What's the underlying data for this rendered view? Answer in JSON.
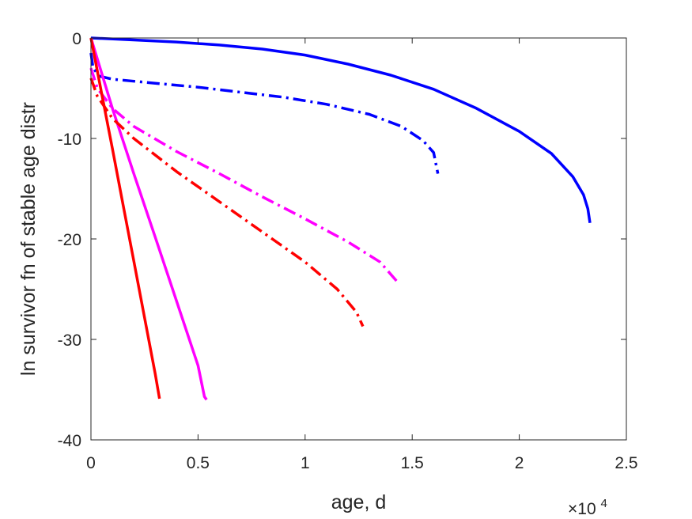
{
  "chart_data": {
    "type": "line",
    "title": "",
    "xlabel": "age, d",
    "ylabel": "ln survivor fn of stable age distr",
    "x_exponent_label": {
      "base": "×10",
      "exponent": "4"
    },
    "xlim": [
      0,
      25000
    ],
    "ylim": [
      -40,
      0
    ],
    "xticks": [
      0,
      5000,
      10000,
      15000,
      20000,
      25000
    ],
    "xtick_labels": [
      "0",
      "0.5",
      "1",
      "1.5",
      "2",
      "2.5"
    ],
    "yticks": [
      0,
      -10,
      -20,
      -30,
      -40
    ],
    "ytick_labels": [
      "0",
      "-10",
      "-20",
      "-30",
      "-40"
    ],
    "grid": false,
    "legend": "none",
    "series": [
      {
        "color": "#0000ff",
        "style": "solid",
        "points": [
          [
            0,
            0
          ],
          [
            2000,
            -0.2
          ],
          [
            4000,
            -0.4
          ],
          [
            6000,
            -0.7
          ],
          [
            8000,
            -1.1
          ],
          [
            10000,
            -1.7
          ],
          [
            12000,
            -2.6
          ],
          [
            14000,
            -3.7
          ],
          [
            16000,
            -5.1
          ],
          [
            18000,
            -7.0
          ],
          [
            20000,
            -9.3
          ],
          [
            21500,
            -11.5
          ],
          [
            22500,
            -13.8
          ],
          [
            23000,
            -15.6
          ],
          [
            23200,
            -17.0
          ],
          [
            23300,
            -18.4
          ]
        ]
      },
      {
        "color": "#0000ff",
        "style": "dashdot",
        "points": [
          [
            0,
            -1.5
          ],
          [
            100,
            -3.0
          ],
          [
            400,
            -3.8
          ],
          [
            1000,
            -4.1
          ],
          [
            3000,
            -4.5
          ],
          [
            5000,
            -4.9
          ],
          [
            7000,
            -5.4
          ],
          [
            9000,
            -5.9
          ],
          [
            11000,
            -6.6
          ],
          [
            13000,
            -7.6
          ],
          [
            14500,
            -8.8
          ],
          [
            15500,
            -10.2
          ],
          [
            16000,
            -11.4
          ],
          [
            16200,
            -13.5
          ]
        ]
      },
      {
        "color": "#ff00ff",
        "style": "solid",
        "points": [
          [
            0,
            0
          ],
          [
            1000,
            -7.0
          ],
          [
            2000,
            -13.5
          ],
          [
            3000,
            -19.8
          ],
          [
            4000,
            -26.2
          ],
          [
            5000,
            -32.6
          ],
          [
            5300,
            -35.7
          ],
          [
            5400,
            -36.0
          ]
        ]
      },
      {
        "color": "#ff00ff",
        "style": "dashdot",
        "points": [
          [
            0,
            -3.0
          ],
          [
            300,
            -5.0
          ],
          [
            1000,
            -7.0
          ],
          [
            2000,
            -8.8
          ],
          [
            4000,
            -11.3
          ],
          [
            6000,
            -13.5
          ],
          [
            8000,
            -15.8
          ],
          [
            10000,
            -18.0
          ],
          [
            12000,
            -20.3
          ],
          [
            13500,
            -22.3
          ],
          [
            14400,
            -24.5
          ]
        ]
      },
      {
        "color": "#ff0000",
        "style": "solid",
        "points": [
          [
            0,
            0
          ],
          [
            500,
            -5.5
          ],
          [
            1000,
            -11.0
          ],
          [
            1500,
            -16.6
          ],
          [
            2000,
            -22.2
          ],
          [
            2500,
            -27.8
          ],
          [
            3000,
            -33.4
          ],
          [
            3200,
            -35.9
          ]
        ]
      },
      {
        "color": "#ff0000",
        "style": "dashdot",
        "points": [
          [
            0,
            -4.0
          ],
          [
            300,
            -5.8
          ],
          [
            1000,
            -8.0
          ],
          [
            2000,
            -10.0
          ],
          [
            4000,
            -13.3
          ],
          [
            6000,
            -16.3
          ],
          [
            8000,
            -19.3
          ],
          [
            10000,
            -22.3
          ],
          [
            11500,
            -25.0
          ],
          [
            12400,
            -27.3
          ],
          [
            12700,
            -28.7
          ]
        ]
      }
    ]
  }
}
